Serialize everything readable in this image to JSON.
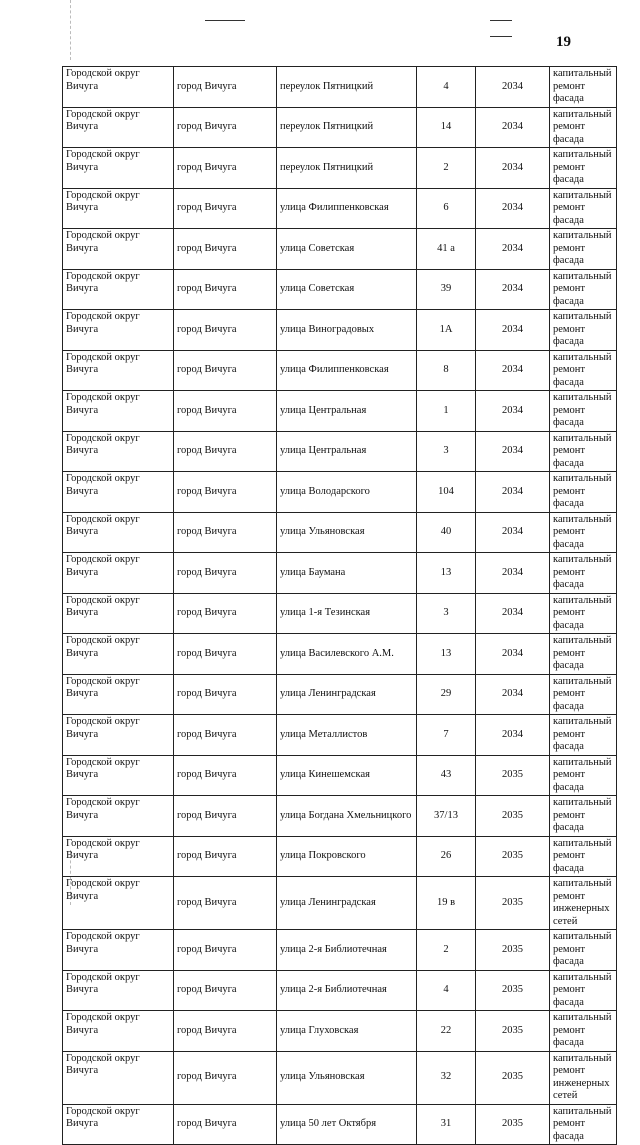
{
  "page_number": "19",
  "rows": [
    {
      "district": "Городской округ Вичуга",
      "city": "город Вичуга",
      "street": "переулок Пятницкий",
      "house": "4",
      "year": "2034",
      "work": "капитальный ремонт фасада"
    },
    {
      "district": "Городской округ Вичуга",
      "city": "город Вичуга",
      "street": "переулок Пятницкий",
      "house": "14",
      "year": "2034",
      "work": "капитальный ремонт фасада"
    },
    {
      "district": "Городской округ Вичуга",
      "city": "город Вичуга",
      "street": "переулок Пятницкий",
      "house": "2",
      "year": "2034",
      "work": "капитальный ремонт фасада"
    },
    {
      "district": "Городской округ Вичуга",
      "city": "город Вичуга",
      "street": "улица Филиппенковская",
      "house": "6",
      "year": "2034",
      "work": "капитальный ремонт фасада"
    },
    {
      "district": "Городской округ Вичуга",
      "city": "город Вичуга",
      "street": "улица Советская",
      "house": "41 а",
      "year": "2034",
      "work": "капитальный ремонт фасада"
    },
    {
      "district": "Городской округ Вичуга",
      "city": "город Вичуга",
      "street": "улица Советская",
      "house": "39",
      "year": "2034",
      "work": "капитальный ремонт фасада"
    },
    {
      "district": "Городской округ Вичуга",
      "city": "город Вичуга",
      "street": "улица Виноградовых",
      "house": "1А",
      "year": "2034",
      "work": "капитальный ремонт фасада"
    },
    {
      "district": "Городской округ Вичуга",
      "city": "город Вичуга",
      "street": "улица Филиппенковская",
      "house": "8",
      "year": "2034",
      "work": "капитальный ремонт фасада"
    },
    {
      "district": "Городской округ Вичуга",
      "city": "город Вичуга",
      "street": "улица Центральная",
      "house": "1",
      "year": "2034",
      "work": "капитальный ремонт фасада"
    },
    {
      "district": "Городской округ Вичуга",
      "city": "город Вичуга",
      "street": "улица Центральная",
      "house": "3",
      "year": "2034",
      "work": "капитальный ремонт фасада"
    },
    {
      "district": "Городской округ Вичуга",
      "city": "город Вичуга",
      "street": "улица Володарского",
      "house": "104",
      "year": "2034",
      "work": "капитальный ремонт фасада"
    },
    {
      "district": "Городской округ Вичуга",
      "city": "город Вичуга",
      "street": "улица Ульяновская",
      "house": "40",
      "year": "2034",
      "work": "капитальный ремонт фасада"
    },
    {
      "district": "Городской округ Вичуга",
      "city": "город Вичуга",
      "street": "улица Баумана",
      "house": "13",
      "year": "2034",
      "work": "капитальный ремонт фасада"
    },
    {
      "district": "Городской округ Вичуга",
      "city": "город Вичуга",
      "street": "улица 1-я Тезинская",
      "house": "3",
      "year": "2034",
      "work": "капитальный ремонт фасада"
    },
    {
      "district": "Городской округ Вичуга",
      "city": "город Вичуга",
      "street": "улица Василевского А.М.",
      "house": "13",
      "year": "2034",
      "work": "капитальный ремонт фасада"
    },
    {
      "district": "Городской округ Вичуга",
      "city": "город Вичуга",
      "street": "улица Ленинградская",
      "house": "29",
      "year": "2034",
      "work": "капитальный ремонт фасада"
    },
    {
      "district": "Городской округ Вичуга",
      "city": "город Вичуга",
      "street": "улица Металлистов",
      "house": "7",
      "year": "2034",
      "work": "капитальный ремонт фасада"
    },
    {
      "district": "Городской округ Вичуга",
      "city": "город Вичуга",
      "street": "улица Кинешемская",
      "house": "43",
      "year": "2035",
      "work": "капитальный ремонт фасада"
    },
    {
      "district": "Городской округ Вичуга",
      "city": "город Вичуга",
      "street": "улица Богдана Хмельницкого",
      "house": "37/13",
      "year": "2035",
      "work": "капитальный ремонт фасада"
    },
    {
      "district": "Городской округ Вичуга",
      "city": "город Вичуга",
      "street": "улица Покровского",
      "house": "26",
      "year": "2035",
      "work": "капитальный ремонт фасада"
    },
    {
      "district": "Городской округ Вичуга",
      "city": "город Вичуга",
      "street": "улица Ленинградская",
      "house": "19 в",
      "year": "2035",
      "work": "капитальный ремонт инженерных сетей"
    },
    {
      "district": "Городской округ Вичуга",
      "city": "город Вичуга",
      "street": "улица 2-я Библиотечная",
      "house": "2",
      "year": "2035",
      "work": "капитальный ремонт фасада"
    },
    {
      "district": "Городской округ Вичуга",
      "city": "город Вичуга",
      "street": "улица 2-я Библиотечная",
      "house": "4",
      "year": "2035",
      "work": "капитальный ремонт фасада"
    },
    {
      "district": "Городской округ Вичуга",
      "city": "город Вичуга",
      "street": "улица Глуховская",
      "house": "22",
      "year": "2035",
      "work": "капитальный ремонт фасада"
    },
    {
      "district": "Городской округ Вичуга",
      "city": "город Вичуга",
      "street": "улица Ульяновская",
      "house": "32",
      "year": "2035",
      "work": "капитальный ремонт инженерных сетей"
    },
    {
      "district": "Городской округ Вичуга",
      "city": "город Вичуга",
      "street": "улица 50 лет Октября",
      "house": "31",
      "year": "2035",
      "work": "капитальный ремонт фасада"
    }
  ]
}
